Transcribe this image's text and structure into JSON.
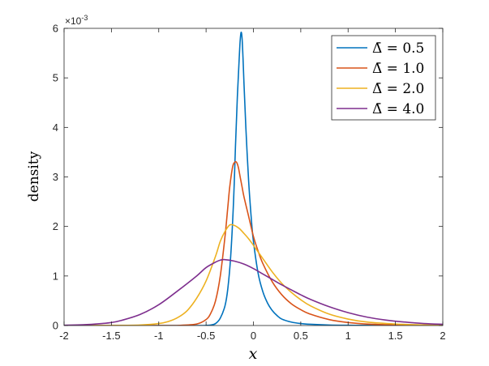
{
  "chart_data": {
    "type": "line",
    "xlabel": "x",
    "ylabel": "density",
    "xlim": [
      -2,
      2
    ],
    "ylim": [
      0,
      0.006
    ],
    "y_exponent_label": "×10-3",
    "x_ticks": [
      -2,
      -1.5,
      -1,
      -0.5,
      0,
      0.5,
      1,
      1.5,
      2
    ],
    "x_tick_labels": [
      "-2",
      "-1.5",
      "-1",
      "-0.5",
      "0",
      "0.5",
      "1",
      "1.5",
      "2"
    ],
    "y_ticks": [
      0,
      0.001,
      0.002,
      0.003,
      0.004,
      0.005,
      0.006
    ],
    "y_tick_labels": [
      "0",
      "1",
      "2",
      "3",
      "4",
      "5",
      "6"
    ],
    "grid": false,
    "legend_placement": "top-right",
    "series": [
      {
        "name": "Δ̄ = 0.5",
        "color": "#0072BD",
        "x": [
          -2.0,
          -1.5,
          -1.0,
          -0.8,
          -0.6,
          -0.5,
          -0.45,
          -0.4,
          -0.35,
          -0.3,
          -0.27,
          -0.24,
          -0.21,
          -0.19,
          -0.17,
          -0.15,
          -0.14,
          -0.13,
          -0.12,
          -0.11,
          -0.1,
          -0.08,
          -0.05,
          -0.02,
          0.0,
          0.05,
          0.1,
          0.15,
          0.2,
          0.25,
          0.3,
          0.4,
          0.5,
          0.6,
          0.8,
          1.0,
          1.2,
          1.5,
          2.0
        ],
        "y": [
          0.0,
          0.0,
          0.0,
          0.0,
          0.0,
          2e-06,
          1e-05,
          4e-05,
          0.00015,
          0.0004,
          0.00075,
          0.0014,
          0.0025,
          0.0036,
          0.0046,
          0.0054,
          0.00575,
          0.00592,
          0.0058,
          0.0054,
          0.0049,
          0.004,
          0.0029,
          0.0021,
          0.0017,
          0.00105,
          0.00068,
          0.00045,
          0.0003,
          0.0002,
          0.00013,
          7e-05,
          4e-05,
          2.5e-05,
          1e-05,
          5e-06,
          3e-06,
          1e-06,
          0.0
        ]
      },
      {
        "name": "Δ̄ = 1.0",
        "color": "#D95319",
        "x": [
          -2.0,
          -1.5,
          -1.0,
          -0.8,
          -0.6,
          -0.5,
          -0.45,
          -0.4,
          -0.35,
          -0.3,
          -0.27,
          -0.25,
          -0.22,
          -0.2,
          -0.18,
          -0.16,
          -0.14,
          -0.12,
          -0.1,
          -0.05,
          0.0,
          0.05,
          0.1,
          0.2,
          0.3,
          0.4,
          0.5,
          0.6,
          0.8,
          1.0,
          1.2,
          1.5,
          1.8,
          2.0
        ],
        "y": [
          0.0,
          0.0,
          0.0,
          2e-06,
          3e-05,
          0.00012,
          0.00025,
          0.0005,
          0.001,
          0.0018,
          0.0024,
          0.0028,
          0.0032,
          0.00329,
          0.0033,
          0.0032,
          0.003,
          0.0028,
          0.0026,
          0.0022,
          0.0018,
          0.0015,
          0.00125,
          0.00088,
          0.00062,
          0.00044,
          0.00032,
          0.00023,
          0.00012,
          6e-05,
          3e-05,
          1.2e-05,
          5e-06,
          3e-06
        ]
      },
      {
        "name": "Δ̄ = 2.0",
        "color": "#EDB120",
        "x": [
          -2.0,
          -1.5,
          -1.2,
          -1.0,
          -0.9,
          -0.8,
          -0.7,
          -0.6,
          -0.5,
          -0.4,
          -0.35,
          -0.3,
          -0.25,
          -0.2,
          -0.15,
          -0.1,
          -0.05,
          0.0,
          0.1,
          0.2,
          0.3,
          0.4,
          0.5,
          0.6,
          0.8,
          1.0,
          1.2,
          1.5,
          1.8,
          2.0
        ],
        "y": [
          0.0,
          2e-06,
          1e-05,
          4e-05,
          8e-05,
          0.00016,
          0.0003,
          0.00055,
          0.0009,
          0.0014,
          0.0017,
          0.0019,
          0.00203,
          0.00202,
          0.00196,
          0.00186,
          0.00175,
          0.00162,
          0.00135,
          0.00108,
          0.00085,
          0.00067,
          0.00052,
          0.0004,
          0.00023,
          0.00013,
          7e-05,
          3e-05,
          1.2e-05,
          6e-06
        ]
      },
      {
        "name": "Δ̄ = 4.0",
        "color": "#7E2F8E",
        "x": [
          -2.0,
          -1.8,
          -1.6,
          -1.5,
          -1.4,
          -1.2,
          -1.0,
          -0.8,
          -0.6,
          -0.5,
          -0.4,
          -0.35,
          -0.3,
          -0.2,
          -0.1,
          0.0,
          0.1,
          0.2,
          0.3,
          0.4,
          0.5,
          0.6,
          0.8,
          1.0,
          1.2,
          1.4,
          1.6,
          1.8,
          2.0
        ],
        "y": [
          5e-06,
          1.5e-05,
          4e-05,
          6e-05,
          0.0001,
          0.00022,
          0.00042,
          0.0007,
          0.001,
          0.00117,
          0.00128,
          0.00132,
          0.00133,
          0.0013,
          0.00124,
          0.00115,
          0.00104,
          0.00093,
          0.00082,
          0.00072,
          0.00062,
          0.00053,
          0.00038,
          0.00026,
          0.00017,
          0.00011,
          7e-05,
          4e-05,
          2.5e-05
        ]
      }
    ]
  }
}
